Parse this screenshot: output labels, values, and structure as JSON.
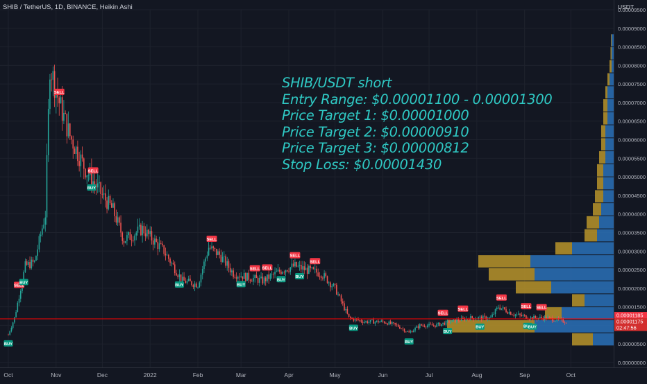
{
  "header": {
    "title": "SHIB / TetherUS, 1D, BINANCE, Heikin Ashi"
  },
  "annotation": {
    "lines": [
      "SHIB/USDT  short",
      "Entry Range: $0.00001100 - 0.00001300",
      "Price Target 1: $0.00001000",
      "Price Target 2: $0.00000910",
      "Price Target 3: $0.00000812",
      "Stop Loss: $0.00001430"
    ]
  },
  "colors": {
    "background": "#131722",
    "up_candle": "#26a69a",
    "down_candle": "#ef5350",
    "sell_badge": "#f23645",
    "buy_badge": "#089981",
    "price_line": "#ff0000",
    "volume_up": "#2a71b8",
    "volume_down": "#b8942a",
    "annotation_text": "#2fc9c4",
    "axis_text": "#b2b5be"
  },
  "chart_data": {
    "type": "candlestick",
    "style": "Heikin Ashi",
    "symbol": "SHIB / TetherUS",
    "timeframe": "1D",
    "exchange": "BINANCE",
    "y_unit": "USDT",
    "ylim": [
      0.0,
      9.5e-05
    ],
    "y_ticks": [
      "0.00009500",
      "0.00009000",
      "0.00008500",
      "0.00008000",
      "0.00007500",
      "0.00007000",
      "0.00006500",
      "0.00006000",
      "0.00005500",
      "0.00005000",
      "0.00004500",
      "0.00004000",
      "0.00003500",
      "0.00003000",
      "0.00002500",
      "0.00002000",
      "0.00001500",
      "0.00001000",
      "0.00000500",
      "0.00000000"
    ],
    "x_ticks": [
      "Oct",
      "Nov",
      "Dec",
      "2022",
      "Feb",
      "Mar",
      "Apr",
      "May",
      "Jun",
      "Jul",
      "Aug",
      "Sep",
      "Oct"
    ],
    "price_labels": [
      {
        "text": "0.00001185",
        "value": 1.185e-05
      },
      {
        "text": "0.00001175",
        "value": 1.175e-05
      },
      {
        "text": "02:47:56",
        "value": 9.9e-06
      }
    ],
    "current_price": 1.175e-05,
    "trend_path": [
      [
        "2021-10-01",
        7.5e-06
      ],
      [
        "2021-10-05",
        1.2e-05
      ],
      [
        "2021-10-12",
        2.6e-05
      ],
      [
        "2021-10-18",
        2.7e-05
      ],
      [
        "2021-10-25",
        4e-05
      ],
      [
        "2021-10-28",
        8e-05
      ],
      [
        "2021-11-03",
        7e-05
      ],
      [
        "2021-11-10",
        6.1e-05
      ],
      [
        "2021-11-20",
        5.2e-05
      ],
      [
        "2021-12-01",
        4.5e-05
      ],
      [
        "2021-12-08",
        4.1e-05
      ],
      [
        "2021-12-15",
        3.3e-05
      ],
      [
        "2021-12-27",
        3.6e-05
      ],
      [
        "2022-01-10",
        3e-05
      ],
      [
        "2022-01-22",
        2.2e-05
      ],
      [
        "2022-02-01",
        2.1e-05
      ],
      [
        "2022-02-08",
        3.1e-05
      ],
      [
        "2022-02-15",
        2.9e-05
      ],
      [
        "2022-02-24",
        2.4e-05
      ],
      [
        "2022-03-05",
        2.3e-05
      ],
      [
        "2022-03-15",
        2.2e-05
      ],
      [
        "2022-03-28",
        2.5e-05
      ],
      [
        "2022-04-05",
        2.6e-05
      ],
      [
        "2022-04-12",
        2.5e-05
      ],
      [
        "2022-04-22",
        2.4e-05
      ],
      [
        "2022-05-01",
        2e-05
      ],
      [
        "2022-05-10",
        1.2e-05
      ],
      [
        "2022-05-20",
        1.1e-05
      ],
      [
        "2022-06-01",
        1.1e-05
      ],
      [
        "2022-06-10",
        1e-05
      ],
      [
        "2022-06-18",
        8e-06
      ],
      [
        "2022-06-25",
        1e-05
      ],
      [
        "2022-07-05",
        1e-05
      ],
      [
        "2022-07-15",
        1.1e-05
      ],
      [
        "2022-07-28",
        1.2e-05
      ],
      [
        "2022-08-10",
        1.2e-05
      ],
      [
        "2022-08-15",
        1.5e-05
      ],
      [
        "2022-08-25",
        1.3e-05
      ],
      [
        "2022-09-05",
        1.2e-05
      ],
      [
        "2022-09-15",
        1.2e-05
      ],
      [
        "2022-09-28",
        1.1e-05
      ]
    ],
    "signals": [
      {
        "label": "BUY",
        "date": "2021-10-01"
      },
      {
        "label": "SELL",
        "date": "2021-10-08"
      },
      {
        "label": "BUY",
        "date": "2021-10-11"
      },
      {
        "label": "SELL",
        "date": "2021-11-03"
      },
      {
        "label": "SELL",
        "date": "2021-11-25"
      },
      {
        "label": "BUY",
        "date": "2021-11-24"
      },
      {
        "label": "BUY",
        "date": "2022-01-20"
      },
      {
        "label": "SELL",
        "date": "2022-02-10"
      },
      {
        "label": "BUY",
        "date": "2022-03-01"
      },
      {
        "label": "SELL",
        "date": "2022-03-10"
      },
      {
        "label": "SELL",
        "date": "2022-03-18"
      },
      {
        "label": "BUY",
        "date": "2022-03-27"
      },
      {
        "label": "SELL",
        "date": "2022-04-05"
      },
      {
        "label": "BUY",
        "date": "2022-04-08"
      },
      {
        "label": "SELL",
        "date": "2022-04-18"
      },
      {
        "label": "BUY",
        "date": "2022-05-13"
      },
      {
        "label": "BUY",
        "date": "2022-06-18"
      },
      {
        "label": "SELL",
        "date": "2022-07-10"
      },
      {
        "label": "BUY",
        "date": "2022-07-13"
      },
      {
        "label": "SELL",
        "date": "2022-07-23"
      },
      {
        "label": "BUY",
        "date": "2022-08-03"
      },
      {
        "label": "SELL",
        "date": "2022-08-17"
      },
      {
        "label": "SELL",
        "date": "2022-09-02"
      },
      {
        "label": "BUY",
        "date": "2022-09-03"
      },
      {
        "label": "BUY",
        "date": "2022-09-06"
      },
      {
        "label": "SELL",
        "date": "2022-09-12"
      }
    ],
    "volume_profile": [
      {
        "price_low": 4.5e-06,
        "price_high": 8e-06,
        "up": 10,
        "down": 10
      },
      {
        "price_low": 8e-06,
        "price_high": 1.15e-05,
        "up": 38,
        "down": 42
      },
      {
        "price_low": 1.15e-05,
        "price_high": 1.5e-05,
        "up": 25,
        "down": 8
      },
      {
        "price_low": 1.5e-05,
        "price_high": 1.85e-05,
        "up": 14,
        "down": 6
      },
      {
        "price_low": 1.85e-05,
        "price_high": 2.2e-05,
        "up": 30,
        "down": 17
      },
      {
        "price_low": 2.2e-05,
        "price_high": 2.55e-05,
        "up": 38,
        "down": 22
      },
      {
        "price_low": 2.55e-05,
        "price_high": 2.9e-05,
        "up": 40,
        "down": 25
      },
      {
        "price_low": 2.9e-05,
        "price_high": 3.25e-05,
        "up": 20,
        "down": 8
      },
      {
        "price_low": 3.25e-05,
        "price_high": 3.6e-05,
        "up": 8,
        "down": 6
      },
      {
        "price_low": 3.6e-05,
        "price_high": 3.95e-05,
        "up": 7,
        "down": 6
      },
      {
        "price_low": 3.95e-05,
        "price_high": 4.3e-05,
        "up": 6,
        "down": 4
      },
      {
        "price_low": 4.3e-05,
        "price_high": 4.65e-05,
        "up": 5,
        "down": 4
      },
      {
        "price_low": 4.65e-05,
        "price_high": 5e-05,
        "up": 5,
        "down": 3
      },
      {
        "price_low": 5e-05,
        "price_high": 5.35e-05,
        "up": 5,
        "down": 3
      },
      {
        "price_low": 5.35e-05,
        "price_high": 5.7e-05,
        "up": 4,
        "down": 3
      },
      {
        "price_low": 5.7e-05,
        "price_high": 6.05e-05,
        "up": 4,
        "down": 2
      },
      {
        "price_low": 6.05e-05,
        "price_high": 6.4e-05,
        "up": 4,
        "down": 2
      },
      {
        "price_low": 6.4e-05,
        "price_high": 6.75e-05,
        "up": 3,
        "down": 2
      },
      {
        "price_low": 6.75e-05,
        "price_high": 7.1e-05,
        "up": 3,
        "down": 2
      },
      {
        "price_low": 7.1e-05,
        "price_high": 7.45e-05,
        "up": 3,
        "down": 1
      },
      {
        "price_low": 7.45e-05,
        "price_high": 7.8e-05,
        "up": 2,
        "down": 1
      },
      {
        "price_low": 7.8e-05,
        "price_high": 8.15e-05,
        "up": 1,
        "down": 1
      },
      {
        "price_low": 8.15e-05,
        "price_high": 8.5e-05,
        "up": 1,
        "down": 0.5
      },
      {
        "price_low": 8.5e-05,
        "price_high": 8.85e-05,
        "up": 1,
        "down": 0.3
      }
    ]
  }
}
